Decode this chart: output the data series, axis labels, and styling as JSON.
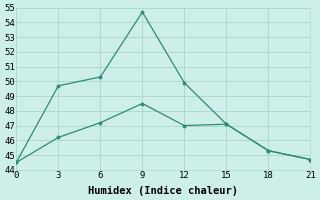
{
  "xlabel": "Humidex (Indice chaleur)",
  "line1_x": [
    0,
    3,
    6,
    9,
    12,
    15,
    18,
    21
  ],
  "line1_y": [
    44.5,
    49.7,
    50.3,
    54.7,
    49.9,
    47.1,
    45.3,
    44.7
  ],
  "line2_x": [
    0,
    3,
    6,
    9,
    12,
    15,
    18,
    21
  ],
  "line2_y": [
    44.5,
    46.2,
    47.2,
    48.5,
    47.0,
    47.1,
    45.3,
    44.7
  ],
  "line_color": "#2e8b74",
  "bg_color": "#ceeee8",
  "grid_color": "#aed8d0",
  "xlim": [
    0,
    21
  ],
  "ylim": [
    44,
    55
  ],
  "xticks": [
    0,
    3,
    6,
    9,
    12,
    15,
    18,
    21
  ],
  "yticks": [
    44,
    45,
    46,
    47,
    48,
    49,
    50,
    51,
    52,
    53,
    54,
    55
  ],
  "tick_fontsize": 6.5,
  "label_fontsize": 7.5
}
